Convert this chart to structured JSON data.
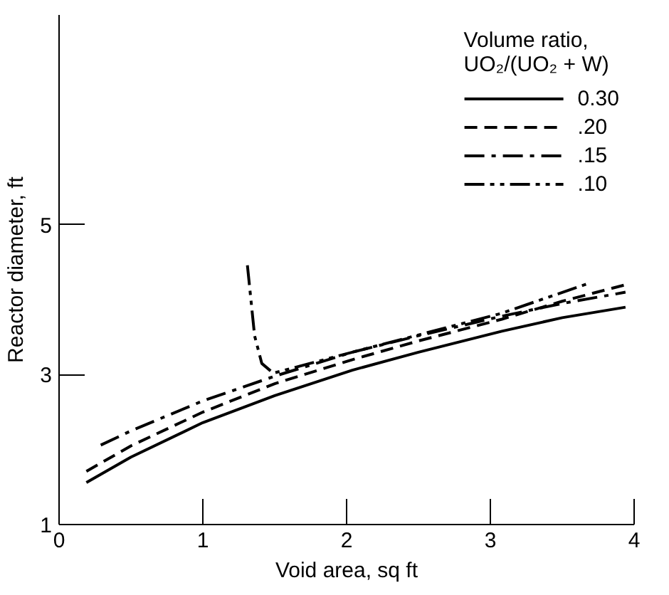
{
  "chart_data": {
    "type": "line",
    "xlabel": "Void area, sq ft",
    "ylabel": "Reactor diameter, ft",
    "legend_title": "Volume ratio,\nUO₂/(UO₂ + W)",
    "legend": "top right",
    "grid": false,
    "marker": "none",
    "xlim": [
      0,
      4
    ],
    "ylim": [
      1,
      7.8
    ],
    "xticks": [
      0,
      1,
      2,
      3,
      4
    ],
    "yticks": [
      1,
      3,
      5
    ],
    "series": [
      {
        "name": "0.30",
        "color": "#000000",
        "line_style": "solid",
        "x": [
          0.19,
          0.5,
          1.0,
          1.5,
          2.04,
          2.5,
          3.08,
          3.5,
          3.94
        ],
        "values": [
          1.56,
          1.9,
          2.36,
          2.72,
          3.06,
          3.3,
          3.58,
          3.76,
          3.9
        ]
      },
      {
        "name": ".20",
        "color": "#000000",
        "line_style": "dashed",
        "x": [
          0.19,
          0.5,
          1.0,
          1.5,
          2.04,
          2.5,
          3.08,
          3.5,
          3.94
        ],
        "values": [
          1.71,
          2.05,
          2.5,
          2.88,
          3.2,
          3.45,
          3.74,
          3.98,
          4.2
        ]
      },
      {
        "name": ".15",
        "color": "#000000",
        "line_style": "dashdot",
        "x": [
          0.29,
          0.5,
          1.0,
          1.5,
          2.04,
          2.5,
          3.08,
          3.5,
          3.94
        ],
        "values": [
          2.06,
          2.25,
          2.65,
          2.98,
          3.3,
          3.52,
          3.78,
          3.95,
          4.1
        ]
      },
      {
        "name": ".10",
        "color": "#000000",
        "line_style": "dashdotdot",
        "x": [
          1.31,
          1.36,
          1.41,
          1.49,
          2.04,
          3.08,
          3.67
        ],
        "values": [
          4.46,
          3.52,
          3.15,
          3.02,
          3.3,
          3.82,
          4.21
        ]
      }
    ]
  }
}
